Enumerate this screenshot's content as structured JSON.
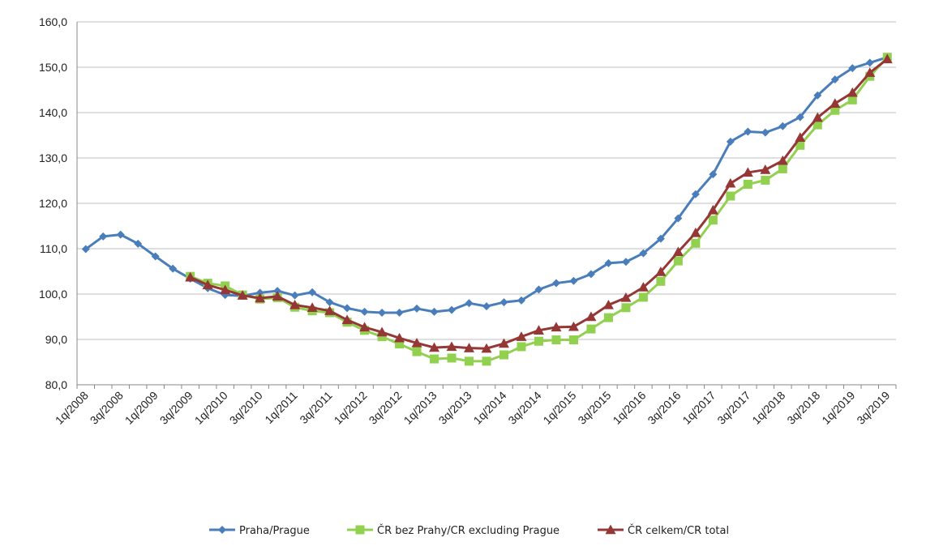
{
  "chart_data": {
    "type": "line",
    "title": "",
    "xlabel": "",
    "ylabel": "",
    "ylim": [
      80,
      160
    ],
    "y_ticks": [
      "80,0",
      "90,0",
      "100,0",
      "110,0",
      "120,0",
      "130,0",
      "140,0",
      "150,0",
      "160,0"
    ],
    "grid": "horizontal",
    "legend_position": "bottom",
    "categories": [
      "1q/2008",
      "2q/2008",
      "3q/2008",
      "4q/2008",
      "1q/2009",
      "2q/2009",
      "3q/2009",
      "4q/2009",
      "1q/2010",
      "2q/2010",
      "3q/2010",
      "4q/2010",
      "1q/2011",
      "2q/2011",
      "3q/2011",
      "4q/2011",
      "1q/2012",
      "2q/2012",
      "3q/2012",
      "4q/2012",
      "1q/2013",
      "2q/2013",
      "3q/2013",
      "4q/2013",
      "1q/2014",
      "2q/2014",
      "3q/2014",
      "4q/2014",
      "1q/2015",
      "2q/2015",
      "3q/2015",
      "4q/2015",
      "1q/2016",
      "2q/2016",
      "3q/2016",
      "4q/2016",
      "1q/2017",
      "2q/2017",
      "3q/2017",
      "4q/2017",
      "1q/2018",
      "2q/2018",
      "3q/2018",
      "4q/2018",
      "1q/2019",
      "2q/2019",
      "3q/2019"
    ],
    "x_tick_labels": [
      "1q/2008",
      "3q/2008",
      "1q/2009",
      "3q/2009",
      "1q/2010",
      "3q/2010",
      "1q/2011",
      "3q/2011",
      "1q/2012",
      "3q/2012",
      "1q/2013",
      "3q/2013",
      "1q/2014",
      "3q/2014",
      "1q/2015",
      "3q/2015",
      "1q/2016",
      "3q/2016",
      "1q/2017",
      "3q/2017",
      "1q/2018",
      "3q/2018",
      "1q/2019",
      "3q/2019"
    ],
    "series": [
      {
        "name": "Praha/Prague",
        "color": "#4a7ebb",
        "marker": "diamond",
        "values": [
          109.9,
          112.7,
          113.1,
          111.1,
          108.3,
          105.6,
          103.4,
          101.3,
          99.8,
          99.6,
          100.3,
          100.7,
          99.7,
          100.4,
          98.2,
          96.9,
          96.1,
          95.9,
          95.9,
          96.8,
          96.1,
          96.5,
          98.0,
          97.3,
          98.2,
          98.6,
          101.0,
          102.4,
          102.9,
          104.4,
          106.8,
          107.1,
          109.0,
          112.2,
          116.7,
          122.0,
          126.4,
          133.6,
          135.8,
          135.6,
          137.0,
          139.0,
          143.8,
          147.3,
          149.8,
          151.0,
          152.2
        ]
      },
      {
        "name": "ČR bez Prahy/CR excluding Prague",
        "color": "#92d050",
        "marker": "square",
        "values": [
          null,
          null,
          null,
          null,
          null,
          null,
          103.9,
          102.4,
          101.8,
          99.8,
          98.9,
          99.2,
          97.1,
          96.3,
          95.9,
          93.8,
          92.0,
          90.6,
          89.0,
          87.3,
          85.7,
          85.9,
          85.2,
          85.2,
          86.6,
          88.4,
          89.6,
          89.9,
          89.9,
          92.3,
          94.8,
          97.0,
          99.3,
          102.8,
          107.3,
          111.2,
          116.3,
          121.6,
          124.2,
          125.1,
          127.6,
          132.8,
          137.3,
          140.5,
          142.8,
          148.0,
          152.2
        ]
      },
      {
        "name": "ČR celkem/CR total",
        "color": "#953735",
        "marker": "triangle",
        "values": [
          null,
          null,
          null,
          null,
          null,
          null,
          103.7,
          102.0,
          100.9,
          99.7,
          99.1,
          99.5,
          97.6,
          97.0,
          96.3,
          94.3,
          92.7,
          91.6,
          90.3,
          89.2,
          88.2,
          88.4,
          88.1,
          88.0,
          89.1,
          90.6,
          92.0,
          92.7,
          92.8,
          95.0,
          97.6,
          99.2,
          101.5,
          104.9,
          109.3,
          113.5,
          118.5,
          124.4,
          126.8,
          127.4,
          129.4,
          134.5,
          138.9,
          142.0,
          144.4,
          148.8,
          151.8
        ]
      }
    ]
  }
}
